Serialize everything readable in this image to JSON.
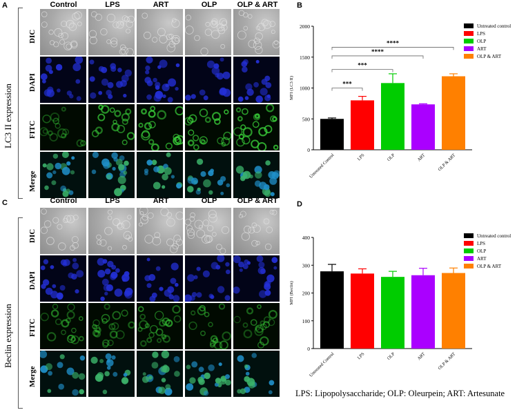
{
  "panels": {
    "A": "A",
    "B": "B",
    "C": "C",
    "D": "D"
  },
  "micrographs": {
    "columns": [
      "Control",
      "LPS",
      "ART",
      "OLP",
      "OLP & ART"
    ],
    "rows": [
      "DIC",
      "DAPI",
      "FITC",
      "Merge"
    ],
    "top_side_label": "LC3 II expression",
    "bottom_side_label": "Beclin expression"
  },
  "legend_labels": [
    "Untreated control",
    "LPS",
    "OLP",
    "ART",
    "OLP & ART"
  ],
  "colors": {
    "untreated": "#000000",
    "lps": "#ff0000",
    "olp": "#00cc00",
    "art": "#aa00ff",
    "olp_art": "#ff8000"
  },
  "footnote": "LPS: Lipopolysaccharide; OLP: Oleurpein; ART: Artesunate",
  "chart_data": [
    {
      "type": "bar",
      "panel": "B",
      "categories": [
        "Untreated Control",
        "LPS",
        "OLP",
        "ART",
        "OLP & ART"
      ],
      "values": [
        500,
        800,
        1080,
        735,
        1190
      ],
      "errors": [
        15,
        65,
        150,
        10,
        40
      ],
      "ylabel": "MFI (LC3 II)",
      "ylim": [
        0,
        2000
      ],
      "yticks": [
        "0",
        "500",
        "1000",
        "1500",
        "2000"
      ],
      "legend_position": "top-right",
      "significance": [
        {
          "from": 0,
          "to": 1,
          "label": "***"
        },
        {
          "from": 0,
          "to": 2,
          "label": "***"
        },
        {
          "from": 0,
          "to": 3,
          "label": "****"
        },
        {
          "from": 0,
          "to": 4,
          "label": "****"
        }
      ]
    },
    {
      "type": "bar",
      "panel": "D",
      "categories": [
        "Untreated Control",
        "LPS",
        "OLP",
        "ART",
        "OLP & ART"
      ],
      "values": [
        278,
        270,
        258,
        264,
        272
      ],
      "errors": [
        25,
        17,
        20,
        25,
        18
      ],
      "ylabel": "MFI (Beclin)",
      "ylim": [
        0,
        400
      ],
      "yticks": [
        "0",
        "100",
        "200",
        "300",
        "400"
      ],
      "legend_position": "top-right"
    }
  ]
}
